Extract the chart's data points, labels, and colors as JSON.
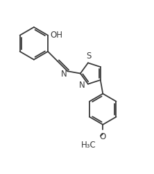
{
  "bg_color": "#ffffff",
  "line_color": "#3a3a3a",
  "line_width": 1.3,
  "font_size": 8.5,
  "figsize": [
    2.22,
    2.51
  ],
  "dpi": 100,
  "xlim": [
    0,
    10
  ],
  "ylim": [
    0,
    11
  ]
}
